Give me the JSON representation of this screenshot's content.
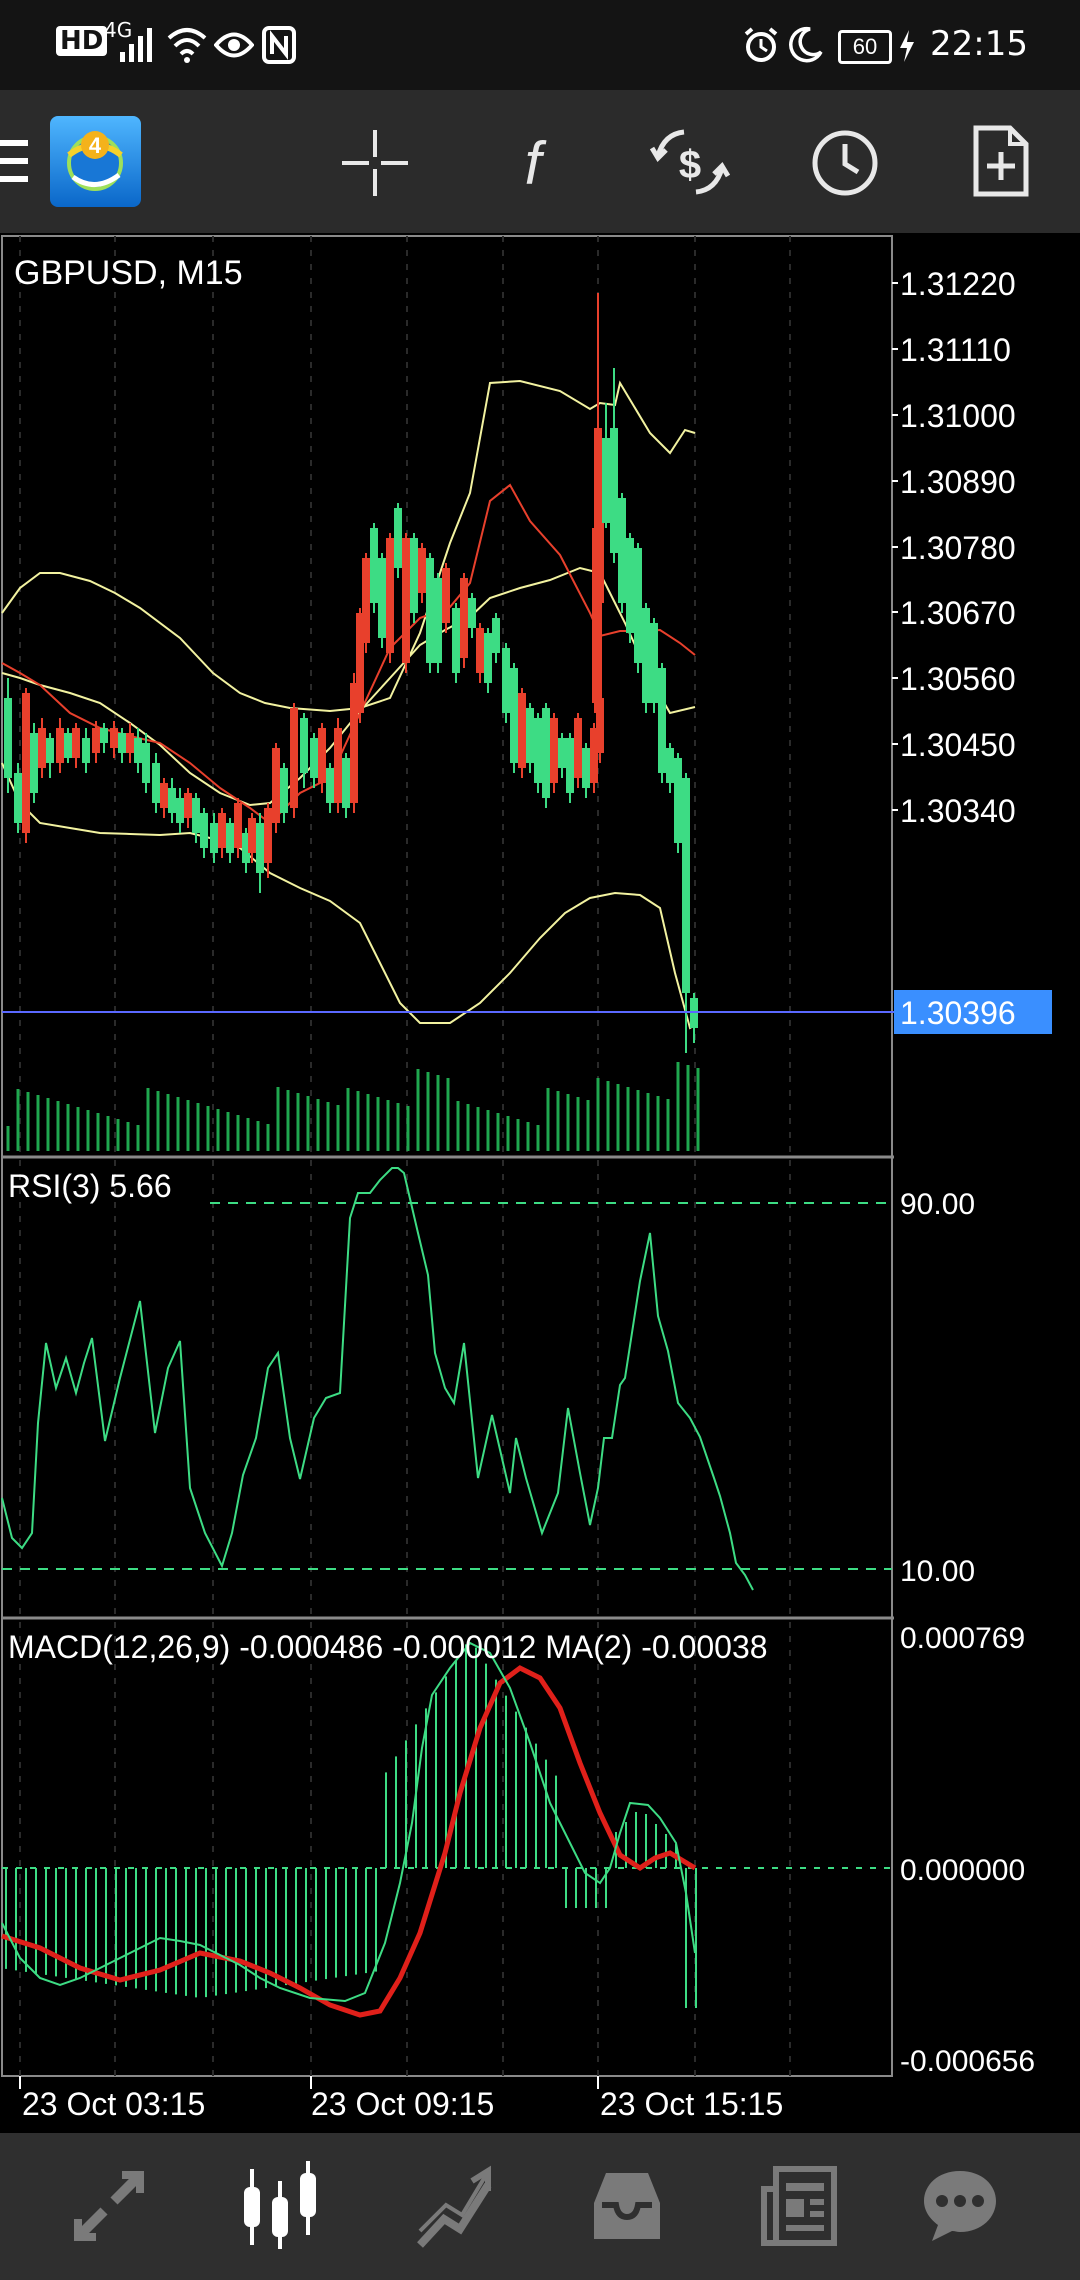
{
  "status_bar": {
    "left_icons": [
      "HD",
      "4G",
      "signal-icon",
      "wifi-icon",
      "eye-icon",
      "nfc-icon"
    ],
    "battery": "60",
    "time": "22:15"
  },
  "toolbar": {
    "buttons": [
      "menu-icon",
      "app-logo",
      "crosshair-icon",
      "indicators-icon",
      "trade-icon",
      "clock-icon",
      "new-order-icon"
    ]
  },
  "chart": {
    "symbol_label": "GBPUSD, M15",
    "current_price": "1.30396",
    "price_ticks": [
      "1.31220",
      "1.31110",
      "1.31000",
      "1.30890",
      "1.30780",
      "1.30670",
      "1.30560",
      "1.30450",
      "1.30340"
    ],
    "rsi_label": "RSI(3) 5.66",
    "rsi_ticks": [
      "90.00",
      "10.00"
    ],
    "macd_label": "MACD(12,26,9) -0.000486 -0.000012 MA(2) -0.00038",
    "macd_ticks": [
      "0.000769",
      "0.000000",
      "-0.000656"
    ],
    "time_labels": [
      "23 Oct 03:15",
      "23 Oct 09:15",
      "23 Oct 15:15"
    ],
    "colors": {
      "bull": "#3ddc84",
      "bear": "#e8402c",
      "bands": "#f2f2a0",
      "ma": "#e8402c",
      "price_line": "#5a68ff",
      "price_tag": "#3a8fff",
      "signal": "#e0201a"
    }
  },
  "bottom_nav": {
    "items": [
      "quotes-icon",
      "chart-icon",
      "trade-icon",
      "history-icon",
      "news-icon",
      "chat-icon"
    ],
    "active": "chart-icon"
  }
}
